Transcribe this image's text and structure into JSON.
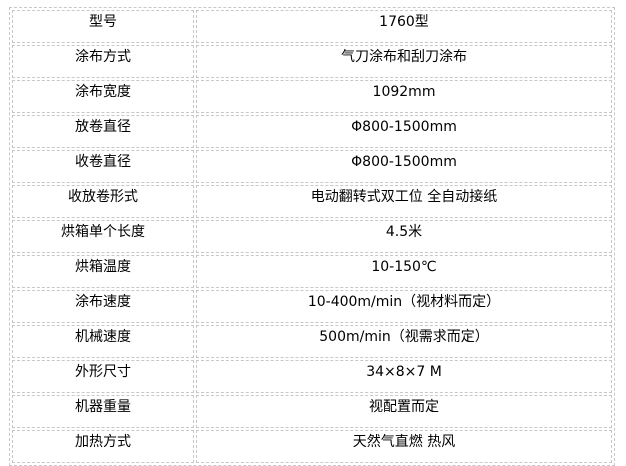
{
  "rows": [
    {
      "label": "型号",
      "value": "1760型"
    },
    {
      "label": "涂布方式",
      "value": "气刀涂布和刮刀涂布"
    },
    {
      "label": "涂布宽度",
      "value": "1092mm"
    },
    {
      "label": "放卷直径",
      "value": "Φ800-1500mm"
    },
    {
      "label": "收卷直径",
      "value": "Φ800-1500mm"
    },
    {
      "label": "收放卷形式",
      "value": "电动翻转式双工位 全自动接纸"
    },
    {
      "label": "烘箱单个长度",
      "value": "4.5米"
    },
    {
      "label": "烘箱温度",
      "value": "10-150℃"
    },
    {
      "label": "涂布速度",
      "value": "10-400m/min（视材料而定）"
    },
    {
      "label": "机械速度",
      "value": "500m/min（视需求而定）"
    },
    {
      "label": "外形尺寸",
      "value": "34×8×7 M"
    },
    {
      "label": "机器重量",
      "value": "视配置而定"
    },
    {
      "label": "加热方式",
      "value": "天然气直燃 热风"
    }
  ]
}
